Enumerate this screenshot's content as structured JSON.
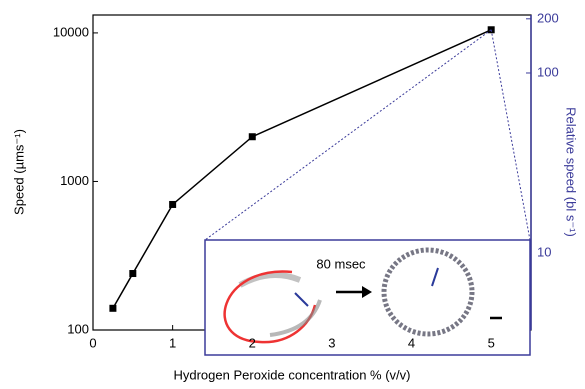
{
  "chart_data": {
    "type": "line",
    "xlabel": "Hydrogen Peroxide concentration % (v/v)",
    "ylabel": "Speed (µms⁻¹)",
    "y2label": "Relative speed (bl s⁻¹)",
    "x": [
      0.25,
      0.5,
      1,
      2,
      5
    ],
    "series": [
      {
        "color": "#000000",
        "values": [
          140,
          240,
          700,
          2000,
          10500
        ]
      }
    ],
    "xlim": [
      0,
      5.5
    ],
    "xticks": [
      0,
      1,
      2,
      3,
      4,
      5
    ],
    "ylim": [
      100,
      13200
    ],
    "yticks": [
      100,
      1000,
      10000
    ],
    "log_y": true,
    "y2lim": [
      3.73,
      210
    ],
    "y2ticks": [
      10,
      100,
      200
    ],
    "log_y2": true,
    "y2color": "#3b3b9a",
    "inset_label": "80 msec"
  }
}
